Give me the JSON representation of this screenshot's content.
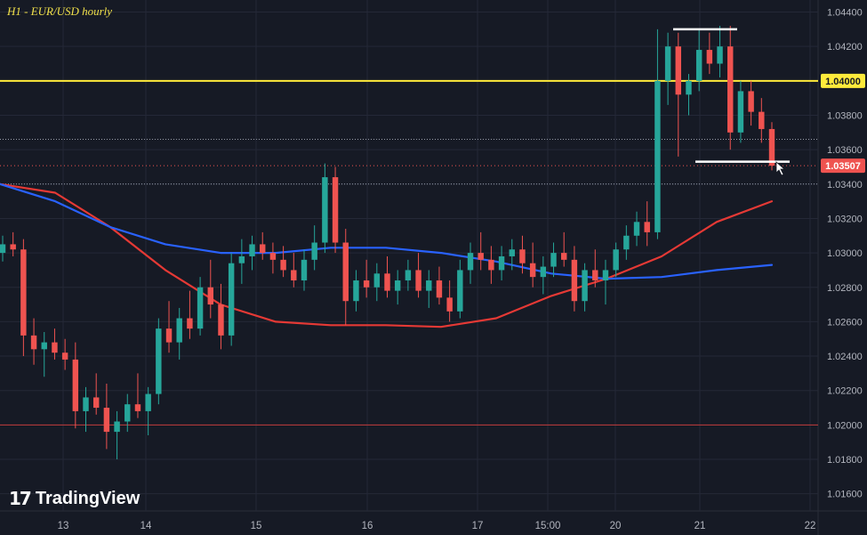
{
  "header": {
    "title": "H1 - EUR/USD hourly"
  },
  "brand": {
    "name": "TradingView"
  },
  "colors": {
    "background": "#161a25",
    "up": "#26a69a",
    "down": "#ef5350",
    "ma_fast": "#e53935",
    "ma_slow": "#2962ff",
    "resistance": "#ffeb3b",
    "grid": "#242837"
  },
  "chart_data": {
    "type": "candlestick",
    "y_ticks": [
      "1.04400",
      "1.04200",
      "1.04000",
      "1.03800",
      "1.03600",
      "1.03400",
      "1.03200",
      "1.03000",
      "1.02800",
      "1.02600",
      "1.02400",
      "1.02200",
      "1.02000",
      "1.01800",
      "1.01600"
    ],
    "x_ticks": [
      "13",
      "14",
      "15",
      "16",
      "17",
      "15:00",
      "20",
      "21",
      "22"
    ],
    "ylim": [
      1.015,
      1.0447
    ],
    "price_badges": [
      {
        "label": "1.04000",
        "value": 1.04,
        "style": "yellow"
      },
      {
        "label": "1.03507",
        "value": 1.03507,
        "style": "red"
      }
    ],
    "horizontal_levels": [
      {
        "value": 1.04,
        "style": "yellow-solid"
      },
      {
        "value": 1.02,
        "style": "red-solid"
      },
      {
        "value": 1.0366,
        "style": "white-dotted"
      },
      {
        "value": 1.03507,
        "style": "red-dotted"
      },
      {
        "value": 1.034,
        "style": "white-dotted"
      }
    ],
    "ranges": [
      {
        "top": 1.043,
        "bottom": 1.0353
      }
    ],
    "moving_averages": [
      {
        "color": "red",
        "values": [
          1.034,
          1.0335,
          1.0315,
          1.029,
          1.027,
          1.026,
          1.0258,
          1.0258,
          1.0257,
          1.0262,
          1.0275,
          1.0285,
          1.0298,
          1.0318,
          1.033
        ]
      },
      {
        "color": "blue",
        "values": [
          1.034,
          1.033,
          1.0315,
          1.0305,
          1.03,
          1.03,
          1.0303,
          1.0303,
          1.03,
          1.0295,
          1.0288,
          1.0285,
          1.0286,
          1.029,
          1.0293
        ]
      }
    ],
    "series": [
      {
        "values": [
          [
            1.03,
            1.031,
            1.0295,
            1.0305
          ],
          [
            1.0305,
            1.0312,
            1.0298,
            1.0302
          ],
          [
            1.0302,
            1.0308,
            1.024,
            1.0252
          ],
          [
            1.0252,
            1.0262,
            1.0235,
            1.0244
          ],
          [
            1.0244,
            1.0254,
            1.0228,
            1.0248
          ],
          [
            1.0248,
            1.0256,
            1.0238,
            1.0242
          ],
          [
            1.0242,
            1.025,
            1.0232,
            1.0238
          ],
          [
            1.0238,
            1.0248,
            1.0198,
            1.0208
          ],
          [
            1.0208,
            1.0222,
            1.0196,
            1.0216
          ],
          [
            1.0216,
            1.023,
            1.0206,
            1.021
          ],
          [
            1.021,
            1.0224,
            1.0186,
            1.0196
          ],
          [
            1.0196,
            1.0208,
            1.018,
            1.0202
          ],
          [
            1.0202,
            1.0218,
            1.0196,
            1.0212
          ],
          [
            1.0212,
            1.023,
            1.0204,
            1.0208
          ],
          [
            1.0208,
            1.0222,
            1.0194,
            1.0218
          ],
          [
            1.0218,
            1.0262,
            1.0212,
            1.0256
          ],
          [
            1.0256,
            1.0272,
            1.0242,
            1.0248
          ],
          [
            1.0248,
            1.0268,
            1.0238,
            1.0262
          ],
          [
            1.0262,
            1.0278,
            1.025,
            1.0256
          ],
          [
            1.0256,
            1.0286,
            1.0252,
            1.028
          ],
          [
            1.028,
            1.0296,
            1.0262,
            1.027
          ],
          [
            1.027,
            1.0282,
            1.0244,
            1.0252
          ],
          [
            1.0252,
            1.03,
            1.0246,
            1.0294
          ],
          [
            1.0294,
            1.0308,
            1.0282,
            1.0298
          ],
          [
            1.0298,
            1.031,
            1.029,
            1.0305
          ],
          [
            1.0305,
            1.0312,
            1.0296,
            1.03
          ],
          [
            1.03,
            1.0306,
            1.0288,
            1.0296
          ],
          [
            1.0296,
            1.0304,
            1.0286,
            1.029
          ],
          [
            1.029,
            1.03,
            1.028,
            1.0284
          ],
          [
            1.0284,
            1.0302,
            1.0278,
            1.0296
          ],
          [
            1.0296,
            1.0316,
            1.029,
            1.0306
          ],
          [
            1.0306,
            1.0352,
            1.03,
            1.0344
          ],
          [
            1.0344,
            1.035,
            1.03,
            1.0306
          ],
          [
            1.0306,
            1.0314,
            1.0258,
            1.0272
          ],
          [
            1.0272,
            1.029,
            1.0266,
            1.0284
          ],
          [
            1.0284,
            1.0296,
            1.0274,
            1.028
          ],
          [
            1.028,
            1.0294,
            1.0272,
            1.0288
          ],
          [
            1.0288,
            1.0298,
            1.0274,
            1.0278
          ],
          [
            1.0278,
            1.029,
            1.027,
            1.0284
          ],
          [
            1.0284,
            1.0296,
            1.0278,
            1.029
          ],
          [
            1.029,
            1.03,
            1.0274,
            1.0278
          ],
          [
            1.0278,
            1.029,
            1.0268,
            1.0284
          ],
          [
            1.0284,
            1.0292,
            1.027,
            1.0274
          ],
          [
            1.0274,
            1.0284,
            1.026,
            1.0266
          ],
          [
            1.0266,
            1.0296,
            1.0262,
            1.029
          ],
          [
            1.029,
            1.0306,
            1.0282,
            1.03
          ],
          [
            1.03,
            1.0312,
            1.029,
            1.0296
          ],
          [
            1.0296,
            1.0304,
            1.0282,
            1.029
          ],
          [
            1.029,
            1.0304,
            1.0284,
            1.0298
          ],
          [
            1.0298,
            1.0308,
            1.029,
            1.0302
          ],
          [
            1.0302,
            1.031,
            1.0288,
            1.0294
          ],
          [
            1.0294,
            1.0306,
            1.028,
            1.0286
          ],
          [
            1.0286,
            1.0298,
            1.0276,
            1.0292
          ],
          [
            1.0292,
            1.0306,
            1.0286,
            1.03
          ],
          [
            1.03,
            1.0312,
            1.0292,
            1.0296
          ],
          [
            1.0296,
            1.0304,
            1.0266,
            1.0272
          ],
          [
            1.0272,
            1.0294,
            1.0266,
            1.029
          ],
          [
            1.029,
            1.0302,
            1.028,
            1.0284
          ],
          [
            1.0284,
            1.0296,
            1.027,
            1.029
          ],
          [
            1.029,
            1.0306,
            1.0286,
            1.0302
          ],
          [
            1.0302,
            1.0316,
            1.0296,
            1.031
          ],
          [
            1.031,
            1.0324,
            1.0304,
            1.0318
          ],
          [
            1.0318,
            1.033,
            1.0304,
            1.0312
          ],
          [
            1.0312,
            1.043,
            1.0308,
            1.04
          ],
          [
            1.04,
            1.0428,
            1.0386,
            1.042
          ],
          [
            1.042,
            1.0428,
            1.0356,
            1.0392
          ],
          [
            1.0392,
            1.0404,
            1.038,
            1.04
          ],
          [
            1.04,
            1.043,
            1.0394,
            1.0418
          ],
          [
            1.0418,
            1.0428,
            1.0404,
            1.041
          ],
          [
            1.041,
            1.0432,
            1.0402,
            1.042
          ],
          [
            1.042,
            1.0432,
            1.036,
            1.037
          ],
          [
            1.037,
            1.04,
            1.0364,
            1.0394
          ],
          [
            1.0394,
            1.04,
            1.0374,
            1.0382
          ],
          [
            1.0382,
            1.039,
            1.0364,
            1.0372
          ],
          [
            1.0372,
            1.0376,
            1.0348,
            1.03507
          ]
        ]
      }
    ]
  }
}
